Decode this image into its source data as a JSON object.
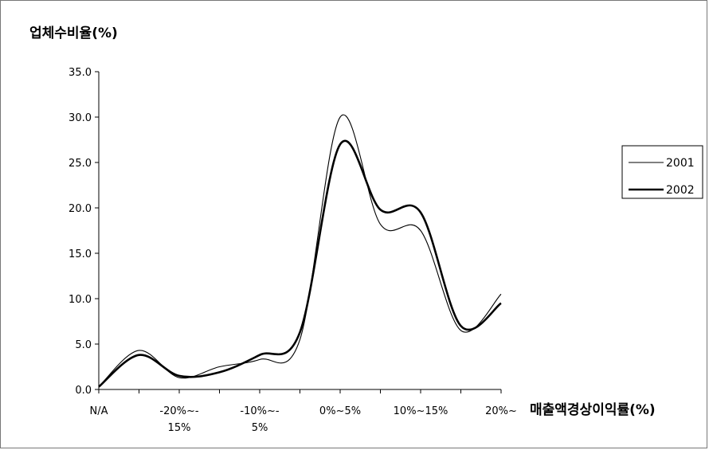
{
  "chart_data": {
    "type": "line",
    "ylabel": "업체수비율(%)",
    "xlabel": "매출액경상이익률(%)",
    "ylim": [
      0,
      35
    ],
    "yticks": [
      "0.0",
      "5.0",
      "10.0",
      "15.0",
      "20.0",
      "25.0",
      "30.0",
      "35.0"
    ],
    "xticks": [
      {
        "line1": "N/A",
        "line2": ""
      },
      {
        "line1": "-20%~-",
        "line2": "15%"
      },
      {
        "line1": "-10%~-",
        "line2": "5%"
      },
      {
        "line1": "0%~5%",
        "line2": ""
      },
      {
        "line1": "10%~15%",
        "line2": ""
      },
      {
        "line1": "20%~",
        "line2": ""
      }
    ],
    "x": [
      0,
      1,
      2,
      3,
      4,
      5,
      6,
      7,
      8,
      9,
      10
    ],
    "series": [
      {
        "name": "2001",
        "values": [
          0.3,
          4.3,
          1.3,
          2.5,
          3.3,
          5.5,
          30.0,
          18.2,
          17.5,
          6.5,
          10.5
        ]
      },
      {
        "name": "2002",
        "values": [
          0.3,
          3.8,
          1.5,
          1.9,
          3.8,
          6.3,
          27.0,
          19.8,
          19.5,
          7.0,
          9.5
        ]
      }
    ],
    "legend_position": "right",
    "grid": false
  }
}
